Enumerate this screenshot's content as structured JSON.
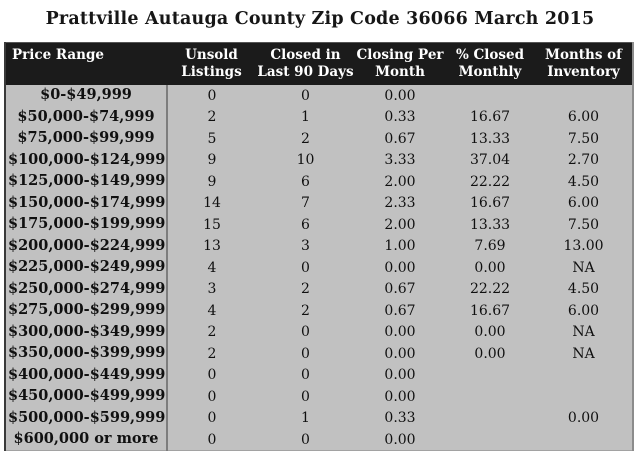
{
  "title": "Prattville Autauga County Zip Code 36066 March 2015",
  "colors": {
    "page_background": "#ffffff",
    "table_background": "#c1c1c1",
    "header_background": "#1b1b1b",
    "header_text": "#ffffff",
    "body_text": "#101010",
    "column_divider": "#7d7d7d"
  },
  "header": {
    "display_labels": [
      "Price Range",
      "Unsold\nListings",
      "Closed in\nLast 90 Days",
      "Closing Per\nMonth",
      "% Closed\nMonthly",
      "Months of\nInventory"
    ]
  },
  "chart_data": {
    "type": "table",
    "title": "Prattville Autauga County Zip Code 36066 March 2015",
    "columns": [
      "Price Range",
      "Unsold Listings",
      "Closed in Last 90 Days",
      "Closing Per Month",
      "% Closed Monthly",
      "Months of Inventory"
    ],
    "rows": [
      [
        "$0-$49,999",
        "0",
        "0",
        "0.00",
        "",
        ""
      ],
      [
        "$50,000-$74,999",
        "2",
        "1",
        "0.33",
        "16.67",
        "6.00"
      ],
      [
        "$75,000-$99,999",
        "5",
        "2",
        "0.67",
        "13.33",
        "7.50"
      ],
      [
        "$100,000-$124,999",
        "9",
        "10",
        "3.33",
        "37.04",
        "2.70"
      ],
      [
        "$125,000-$149,999",
        "9",
        "6",
        "2.00",
        "22.22",
        "4.50"
      ],
      [
        "$150,000-$174,999",
        "14",
        "7",
        "2.33",
        "16.67",
        "6.00"
      ],
      [
        "$175,000-$199,999",
        "15",
        "6",
        "2.00",
        "13.33",
        "7.50"
      ],
      [
        "$200,000-$224,999",
        "13",
        "3",
        "1.00",
        "7.69",
        "13.00"
      ],
      [
        "$225,000-$249,999",
        "4",
        "0",
        "0.00",
        "0.00",
        "NA"
      ],
      [
        "$250,000-$274,999",
        "3",
        "2",
        "0.67",
        "22.22",
        "4.50"
      ],
      [
        "$275,000-$299,999",
        "4",
        "2",
        "0.67",
        "16.67",
        "6.00"
      ],
      [
        "$300,000-$349,999",
        "2",
        "0",
        "0.00",
        "0.00",
        "NA"
      ],
      [
        "$350,000-$399,999",
        "2",
        "0",
        "0.00",
        "0.00",
        "NA"
      ],
      [
        "$400,000-$449,999",
        "0",
        "0",
        "0.00",
        "",
        ""
      ],
      [
        "$450,000-$499,999",
        "0",
        "0",
        "0.00",
        "",
        ""
      ],
      [
        "$500,000-$599,999",
        "0",
        "1",
        "0.33",
        "",
        "0.00"
      ],
      [
        "$600,000 or more",
        "0",
        "0",
        "0.00",
        "",
        ""
      ]
    ]
  }
}
